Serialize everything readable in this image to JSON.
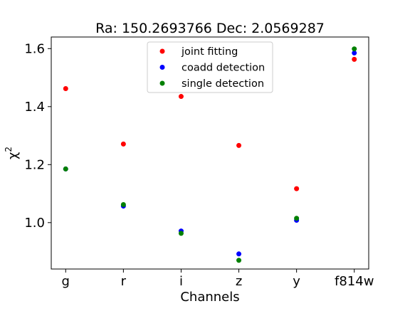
{
  "chart_data": {
    "type": "scatter",
    "title": "Ra: 150.2693766 Dec: 2.0569287",
    "xlabel": "Channels",
    "ylabel": "χ",
    "ylabel_superscript": "2",
    "categories": [
      "g",
      "r",
      "i",
      "z",
      "y",
      "f814w"
    ],
    "ylim": [
      0.84,
      1.64
    ],
    "yticks": [
      1.0,
      1.2,
      1.4,
      1.6
    ],
    "ytick_labels": [
      "1.0",
      "1.2",
      "1.4",
      "1.6"
    ],
    "grid": false,
    "legend_position": "upper center",
    "series": [
      {
        "name": "joint fitting",
        "color": "#ff0000",
        "values": [
          1.462,
          1.271,
          1.435,
          1.266,
          1.117,
          1.563
        ]
      },
      {
        "name": "coadd detection",
        "color": "#0000ff",
        "values": [
          1.185,
          1.057,
          0.971,
          0.892,
          1.008,
          1.585
        ]
      },
      {
        "name": "single detection",
        "color": "#008000",
        "values": [
          1.185,
          1.062,
          0.963,
          0.87,
          1.015,
          1.599
        ]
      }
    ]
  }
}
